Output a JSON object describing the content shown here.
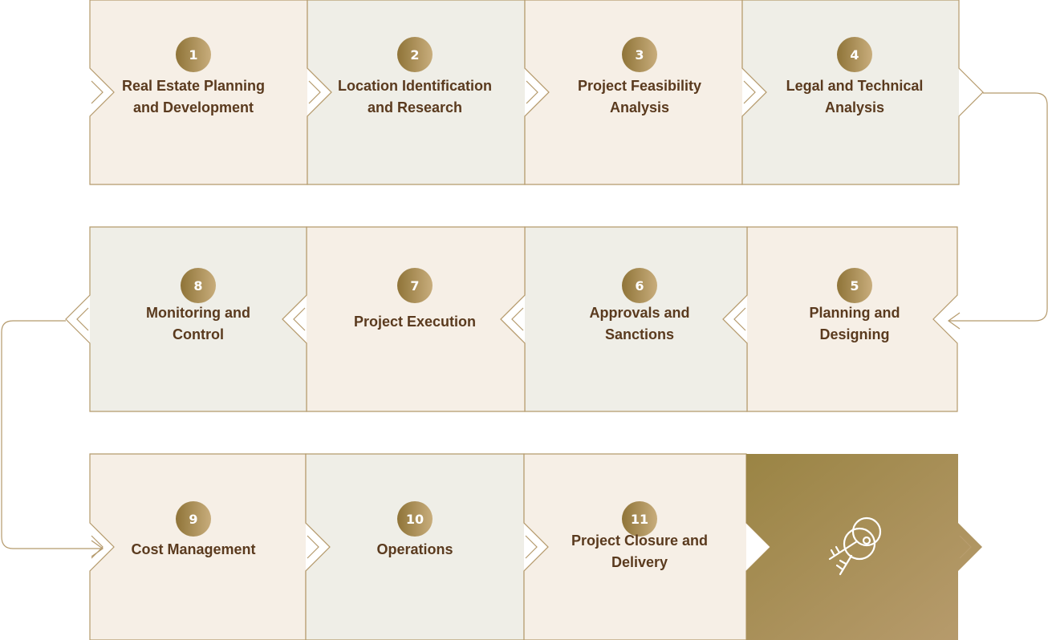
{
  "colors": {
    "cell_light": "#f6efe6",
    "cell_grey": "#efeee7",
    "border": "#b59a6c",
    "badge_dark": "#8f7438",
    "badge_light": "#c8ad7c",
    "text": "#5a3a1e",
    "final_dark": "#9a8444",
    "final_light": "#b89c6e",
    "icon": "#ffffff"
  },
  "steps": [
    {
      "number": "1",
      "label_lines": [
        "Real Estate Planning",
        "and Development"
      ]
    },
    {
      "number": "2",
      "label_lines": [
        "Location Identification",
        "and Research"
      ]
    },
    {
      "number": "3",
      "label_lines": [
        "Project Feasibility",
        "Analysis"
      ]
    },
    {
      "number": "4",
      "label_lines": [
        "Legal and Technical",
        "Analysis"
      ]
    },
    {
      "number": "5",
      "label_lines": [
        "Planning and",
        "Designing"
      ]
    },
    {
      "number": "6",
      "label_lines": [
        "Approvals and",
        "Sanctions"
      ]
    },
    {
      "number": "7",
      "label_lines": [
        "Project Execution"
      ]
    },
    {
      "number": "8",
      "label_lines": [
        "Monitoring and",
        "Control"
      ]
    },
    {
      "number": "9",
      "label_lines": [
        "Cost Management"
      ]
    },
    {
      "number": "10",
      "label_lines": [
        "Operations"
      ]
    },
    {
      "number": "11",
      "label_lines": [
        "Project Closure and",
        "Delivery"
      ]
    }
  ],
  "final_icon": "keys-icon"
}
